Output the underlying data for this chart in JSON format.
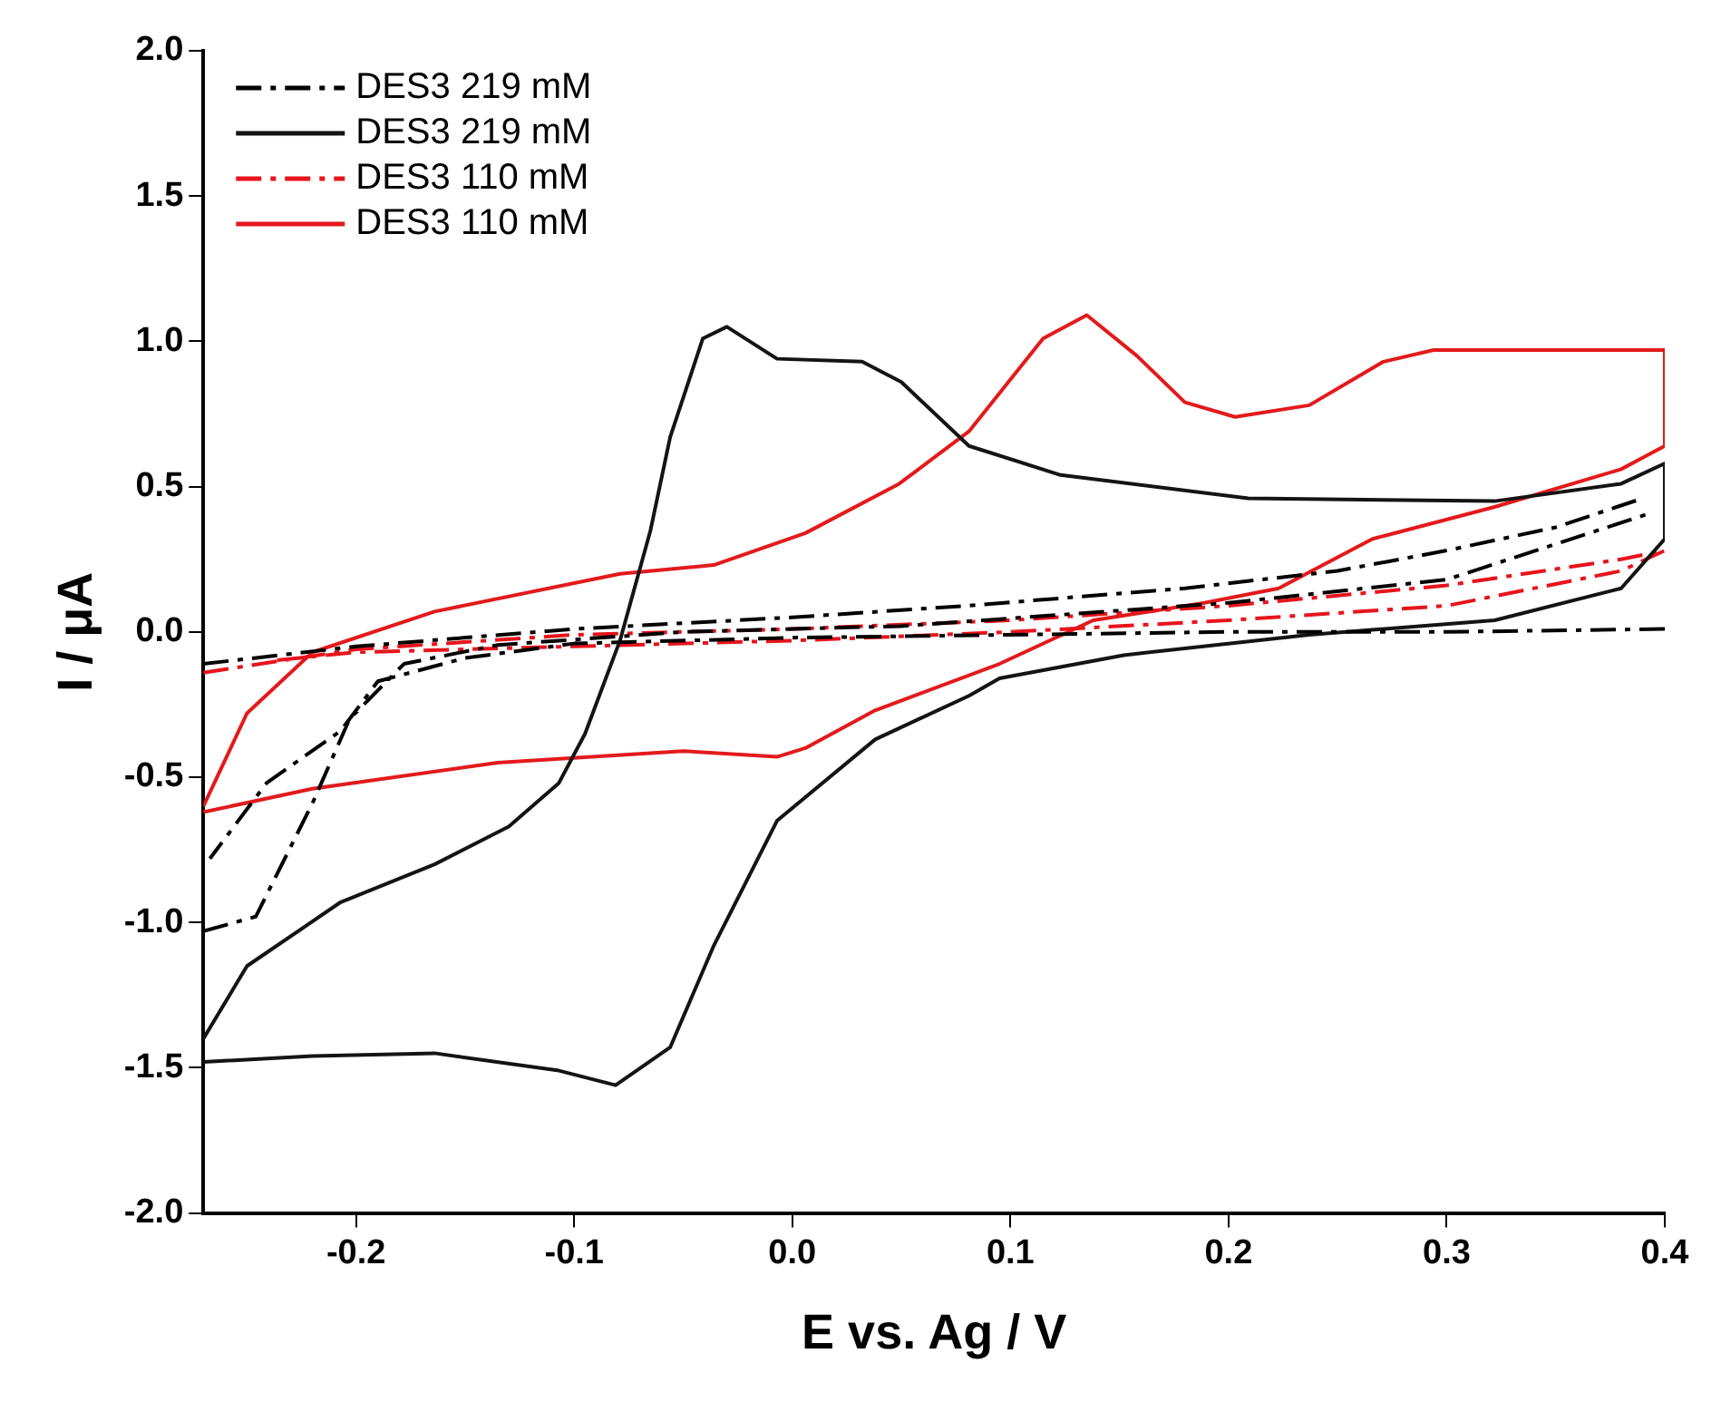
{
  "chart_data": {
    "type": "line",
    "xlabel": "E vs. Ag / V",
    "ylabel": "I / μA",
    "xlim": [
      -0.27,
      0.4
    ],
    "ylim": [
      -2.0,
      2.0
    ],
    "xticks": [
      -0.2,
      -0.1,
      {
        "value": 0,
        "label": "0.0"
      },
      0.1,
      0.2,
      0.3,
      0.4
    ],
    "yticks": [
      {
        "value": -2,
        "label": "-2.0"
      },
      -1.5,
      {
        "value": -1,
        "label": "-1.0"
      },
      -0.5,
      {
        "value": 0,
        "label": "0.0"
      },
      0.5,
      {
        "value": 1,
        "label": "1.0"
      },
      1.5,
      {
        "value": 2,
        "label": "2.0"
      }
    ],
    "grid": false,
    "legend": "top left",
    "marker": "none",
    "series": [
      {
        "name": "DES3 219 mM",
        "color": "#000000",
        "line_style": "dashed",
        "x": [
          -0.27,
          -0.2,
          -0.1,
          0.0,
          0.08,
          0.18,
          0.25,
          0.3,
          0.35,
          0.39,
          0.395,
          0.4,
          0.3,
          0.2,
          0.1,
          0.0,
          -0.1,
          -0.15,
          -0.19,
          -0.207,
          -0.241,
          -0.267,
          -0.268,
          -0.27,
          -0.246,
          -0.22,
          -0.203,
          -0.178,
          -0.135,
          -0.05,
          0.05,
          0.2,
          0.3,
          0.394
        ],
        "values": [
          -0.11,
          -0.05,
          0.01,
          0.05,
          0.09,
          0.15,
          0.21,
          0.28,
          0.36,
          0.46,
          null,
          0.01,
          0.0,
          0.0,
          -0.01,
          -0.02,
          -0.04,
          -0.09,
          -0.17,
          -0.34,
          -0.52,
          -0.78,
          null,
          -1.03,
          -0.98,
          -0.59,
          -0.3,
          -0.11,
          -0.045,
          0.0,
          0.02,
          0.1,
          0.18,
          0.41
        ]
      },
      {
        "name": "DES3 219 mM",
        "color": "#141414",
        "line_style": "solid",
        "x": [
          -0.27,
          -0.25,
          -0.207,
          -0.164,
          -0.13,
          -0.107,
          -0.095,
          -0.079,
          -0.065,
          -0.056,
          -0.041,
          -0.03,
          -0.007,
          0.032,
          0.05,
          0.081,
          0.123,
          0.209,
          0.322,
          0.38,
          0.4,
          0.4,
          0.38,
          0.322,
          0.237,
          0.152,
          0.095,
          0.081,
          0.038,
          -0.007,
          -0.036,
          -0.056,
          -0.081,
          -0.107,
          -0.164,
          -0.22,
          -0.27
        ],
        "values": [
          -1.4,
          -1.15,
          -0.93,
          -0.8,
          -0.67,
          -0.52,
          -0.35,
          -0.03,
          0.35,
          0.67,
          1.01,
          1.05,
          0.94,
          0.93,
          0.86,
          0.64,
          0.54,
          0.46,
          0.45,
          0.51,
          0.58,
          0.32,
          0.15,
          0.04,
          -0.01,
          -0.08,
          -0.16,
          -0.22,
          -0.37,
          -0.65,
          -1.08,
          -1.43,
          -1.56,
          -1.51,
          -1.45,
          -1.46,
          -1.48
        ]
      },
      {
        "name": "DES3 110 mM",
        "color": "#e8141c",
        "line_style": "dashed",
        "x": [
          -0.27,
          -0.2,
          -0.1,
          0.0,
          0.1,
          0.2,
          0.3,
          0.38,
          0.4,
          0.38,
          0.3,
          0.2,
          0.1,
          0.0,
          -0.1,
          -0.2,
          -0.24
        ],
        "values": [
          -0.14,
          -0.06,
          -0.01,
          0.01,
          0.04,
          0.09,
          0.16,
          0.25,
          0.28,
          0.21,
          0.09,
          0.04,
          0.0,
          -0.03,
          -0.05,
          -0.07,
          -0.1
        ]
      },
      {
        "name": "DES3 110 mM",
        "color": "#e31a1c",
        "line_style": "solid",
        "x": [
          -0.27,
          -0.25,
          -0.22,
          -0.164,
          -0.079,
          -0.036,
          0.006,
          0.049,
          0.081,
          0.115,
          0.135,
          0.158,
          0.18,
          0.203,
          0.237,
          0.271,
          0.294,
          0.35,
          0.4,
          0.4,
          0.38,
          0.322,
          0.266,
          0.223,
          0.189,
          0.138,
          0.095,
          0.038,
          0.006,
          -0.007,
          -0.05,
          -0.135,
          -0.22,
          -0.27
        ],
        "values": [
          -0.6,
          -0.28,
          -0.07,
          0.07,
          0.2,
          0.23,
          0.34,
          0.51,
          0.69,
          1.01,
          1.09,
          0.95,
          0.79,
          0.74,
          0.78,
          0.93,
          0.97,
          0.97,
          0.97,
          0.64,
          0.56,
          0.43,
          0.32,
          0.15,
          0.1,
          0.04,
          -0.11,
          -0.27,
          -0.4,
          -0.43,
          -0.41,
          -0.45,
          -0.54,
          -0.62
        ]
      }
    ]
  }
}
